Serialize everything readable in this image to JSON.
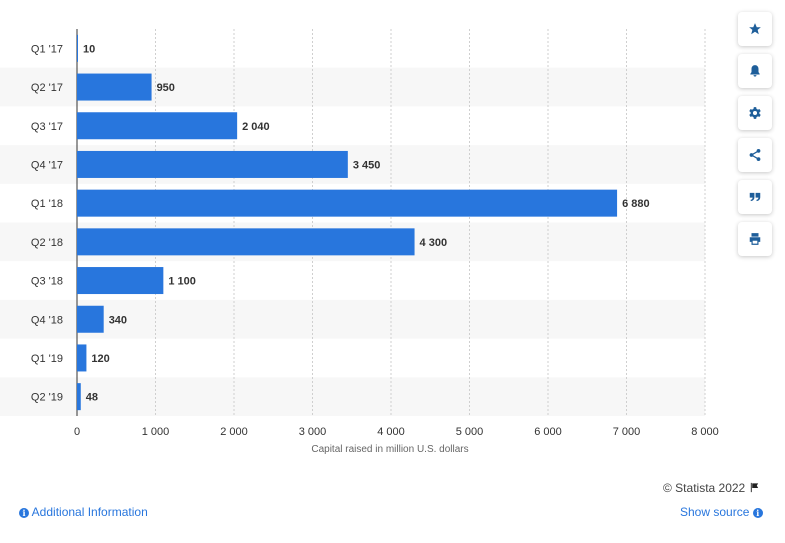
{
  "chart_data": {
    "type": "bar",
    "orientation": "horizontal",
    "categories": [
      "Q1 '17",
      "Q2 '17",
      "Q3 '17",
      "Q4 '17",
      "Q1 '18",
      "Q2 '18",
      "Q3 '18",
      "Q4 '18",
      "Q1 '19",
      "Q2 '19"
    ],
    "values": [
      10,
      950,
      2040,
      3450,
      6880,
      4300,
      1100,
      340,
      120,
      48
    ],
    "value_labels": [
      "10",
      "950",
      "2 040",
      "3 450",
      "6 880",
      "4 300",
      "1 100",
      "340",
      "120",
      "48"
    ],
    "xlabel": "Capital raised in million U.S. dollars",
    "xlim": [
      0,
      8000
    ],
    "xticks": [
      0,
      1000,
      2000,
      3000,
      4000,
      5000,
      6000,
      7000,
      8000
    ],
    "xtick_labels": [
      "0",
      "1 000",
      "2 000",
      "3 000",
      "4 000",
      "5 000",
      "6 000",
      "7 000",
      "8 000"
    ],
    "grid": "vertical dashed",
    "bar_color": "#2876dd",
    "band_color": "#f7f7f7"
  },
  "toolbar": {
    "icons": [
      "star-icon",
      "bell-icon",
      "gear-icon",
      "share-icon",
      "quote-icon",
      "print-icon"
    ]
  },
  "footer": {
    "copyright": "© Statista 2022",
    "additional_info": "Additional Information",
    "show_source": "Show source"
  }
}
